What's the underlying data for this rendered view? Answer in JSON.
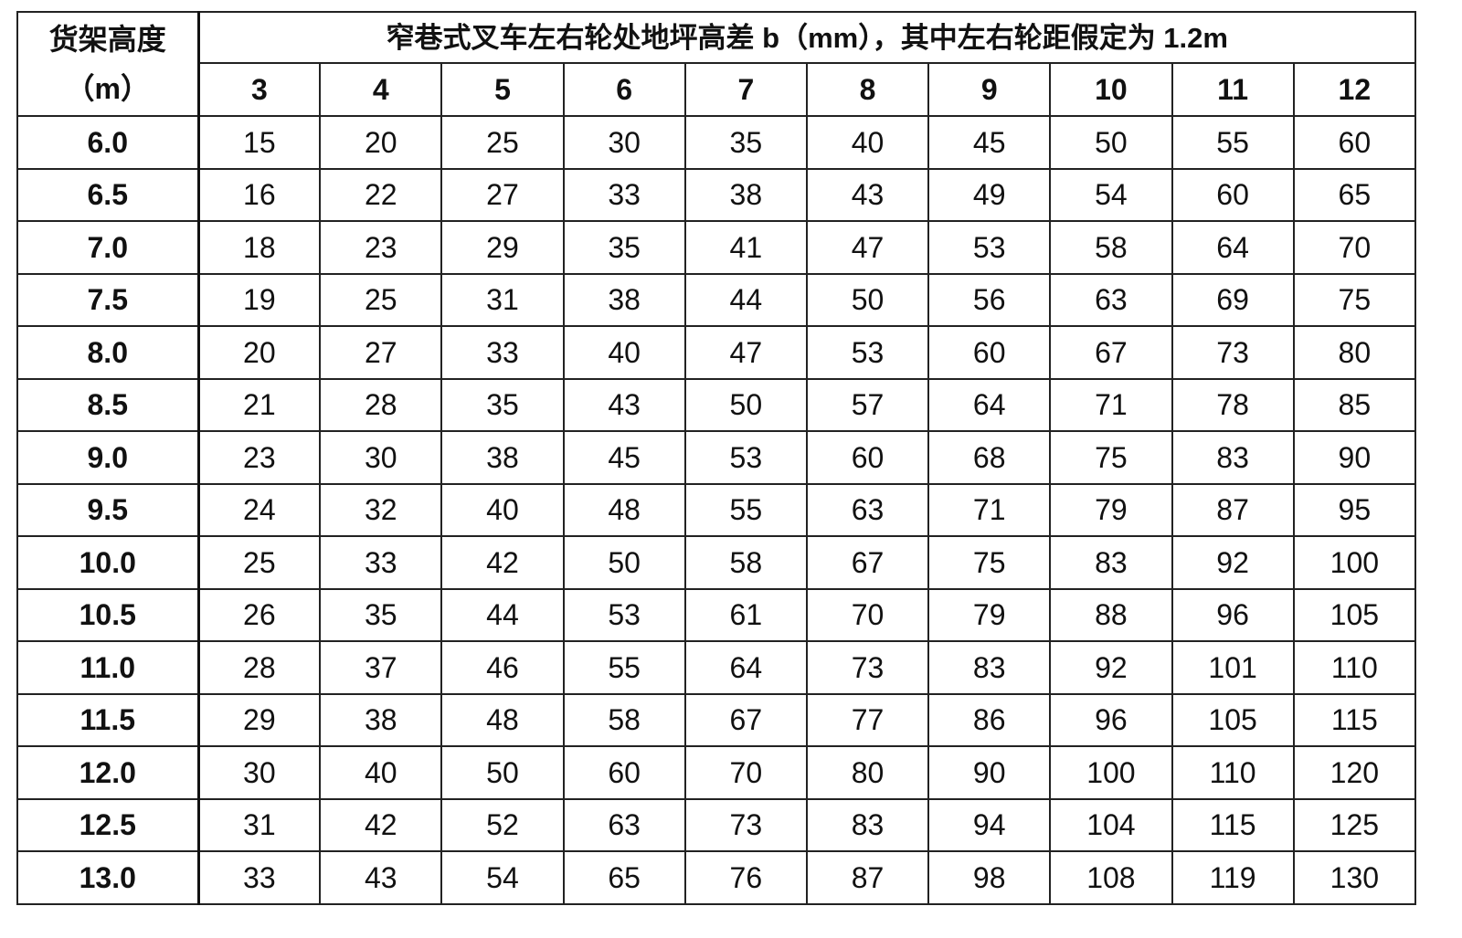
{
  "table": {
    "row_header_label": "货架高度",
    "row_header_unit": "（m）",
    "column_group_title": "窄巷式叉车左右轮处地坪高差 b（mm），其中左右轮距假定为 1.2m",
    "columns": [
      "3",
      "4",
      "5",
      "6",
      "7",
      "8",
      "9",
      "10",
      "11",
      "12"
    ],
    "rows": [
      {
        "height": "6.0",
        "values": [
          "15",
          "20",
          "25",
          "30",
          "35",
          "40",
          "45",
          "50",
          "55",
          "60"
        ]
      },
      {
        "height": "6.5",
        "values": [
          "16",
          "22",
          "27",
          "33",
          "38",
          "43",
          "49",
          "54",
          "60",
          "65"
        ]
      },
      {
        "height": "7.0",
        "values": [
          "18",
          "23",
          "29",
          "35",
          "41",
          "47",
          "53",
          "58",
          "64",
          "70"
        ]
      },
      {
        "height": "7.5",
        "values": [
          "19",
          "25",
          "31",
          "38",
          "44",
          "50",
          "56",
          "63",
          "69",
          "75"
        ]
      },
      {
        "height": "8.0",
        "values": [
          "20",
          "27",
          "33",
          "40",
          "47",
          "53",
          "60",
          "67",
          "73",
          "80"
        ]
      },
      {
        "height": "8.5",
        "values": [
          "21",
          "28",
          "35",
          "43",
          "50",
          "57",
          "64",
          "71",
          "78",
          "85"
        ]
      },
      {
        "height": "9.0",
        "values": [
          "23",
          "30",
          "38",
          "45",
          "53",
          "60",
          "68",
          "75",
          "83",
          "90"
        ]
      },
      {
        "height": "9.5",
        "values": [
          "24",
          "32",
          "40",
          "48",
          "55",
          "63",
          "71",
          "79",
          "87",
          "95"
        ]
      },
      {
        "height": "10.0",
        "values": [
          "25",
          "33",
          "42",
          "50",
          "58",
          "67",
          "75",
          "83",
          "92",
          "100"
        ]
      },
      {
        "height": "10.5",
        "values": [
          "26",
          "35",
          "44",
          "53",
          "61",
          "70",
          "79",
          "88",
          "96",
          "105"
        ]
      },
      {
        "height": "11.0",
        "values": [
          "28",
          "37",
          "46",
          "55",
          "64",
          "73",
          "83",
          "92",
          "101",
          "110"
        ]
      },
      {
        "height": "11.5",
        "values": [
          "29",
          "38",
          "48",
          "58",
          "67",
          "77",
          "86",
          "96",
          "105",
          "115"
        ]
      },
      {
        "height": "12.0",
        "values": [
          "30",
          "40",
          "50",
          "60",
          "70",
          "80",
          "90",
          "100",
          "110",
          "120"
        ]
      },
      {
        "height": "12.5",
        "values": [
          "31",
          "42",
          "52",
          "63",
          "73",
          "83",
          "94",
          "104",
          "115",
          "125"
        ]
      },
      {
        "height": "13.0",
        "values": [
          "33",
          "43",
          "54",
          "65",
          "76",
          "87",
          "98",
          "108",
          "119",
          "130"
        ]
      }
    ]
  }
}
